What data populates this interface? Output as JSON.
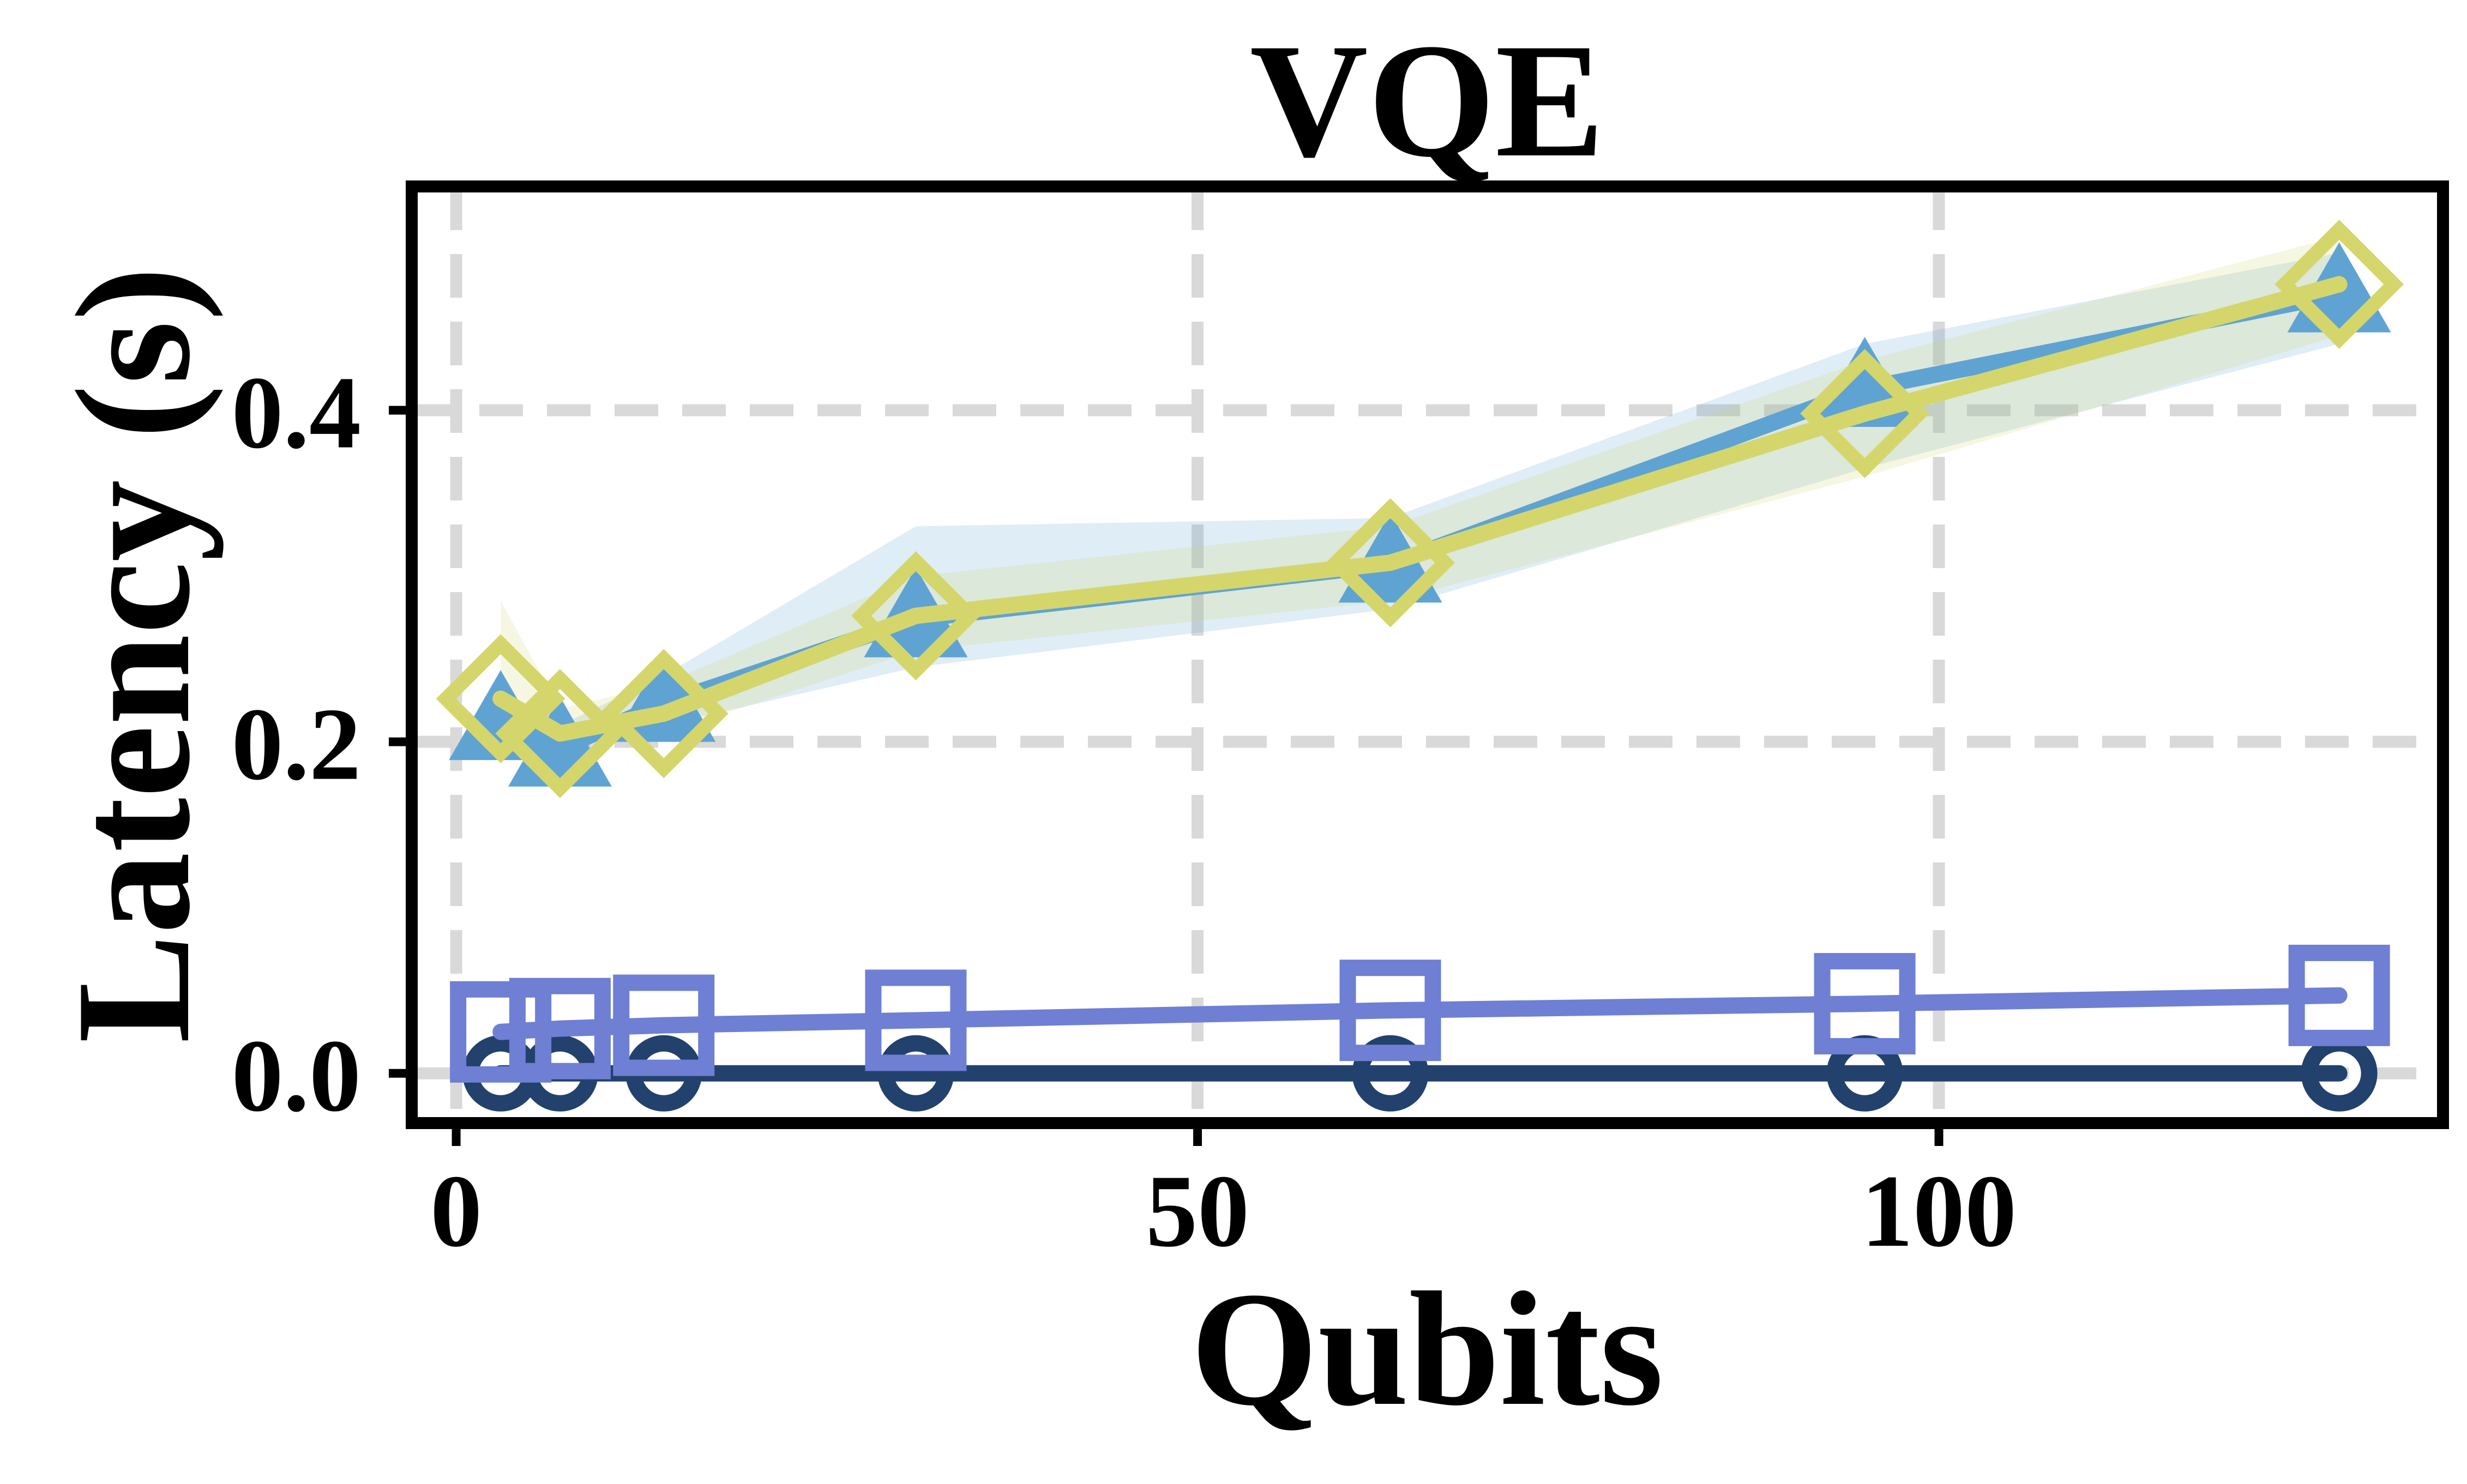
{
  "chart_data": {
    "type": "line",
    "title": "VQE",
    "xlabel": "Qubits",
    "ylabel": "Latency (s)",
    "xlim": [
      -3,
      134
    ],
    "ylim": [
      -0.03,
      0.535
    ],
    "xticks": [
      0,
      50,
      100
    ],
    "xtick_labels": [
      "0",
      "50",
      "100"
    ],
    "yticks": [
      0.0,
      0.2,
      0.4
    ],
    "ytick_labels": [
      "0.0",
      "0.2",
      "0.4"
    ],
    "grid": true,
    "legend": "none",
    "x": [
      3,
      7,
      14,
      31,
      63,
      95,
      127
    ],
    "series": [
      {
        "marker": "triangle",
        "color": "#5fa3d3",
        "values": [
          0.212,
          0.196,
          0.223,
          0.274,
          0.307,
          0.413,
          0.47
        ],
        "band_lower": [
          0.205,
          0.19,
          0.21,
          0.245,
          0.28,
          0.365,
          0.44
        ],
        "band_upper": [
          0.225,
          0.21,
          0.24,
          0.33,
          0.335,
          0.44,
          0.495
        ]
      },
      {
        "marker": "diamond",
        "color": "#d4d66c",
        "values": [
          0.226,
          0.205,
          0.217,
          0.276,
          0.308,
          0.398,
          0.476
        ],
        "band_lower": [
          0.2,
          0.195,
          0.205,
          0.255,
          0.285,
          0.36,
          0.445
        ],
        "band_upper": [
          0.285,
          0.22,
          0.235,
          0.3,
          0.33,
          0.43,
          0.505
        ]
      },
      {
        "marker": "square",
        "color": "#6e7fd4",
        "values": [
          0.025,
          0.027,
          0.029,
          0.032,
          0.038,
          0.042,
          0.047
        ]
      },
      {
        "marker": "circle",
        "color": "#22416d",
        "values": [
          0.0,
          0.0,
          0.0,
          0.0,
          0.0,
          0.0,
          0.0
        ]
      }
    ]
  }
}
